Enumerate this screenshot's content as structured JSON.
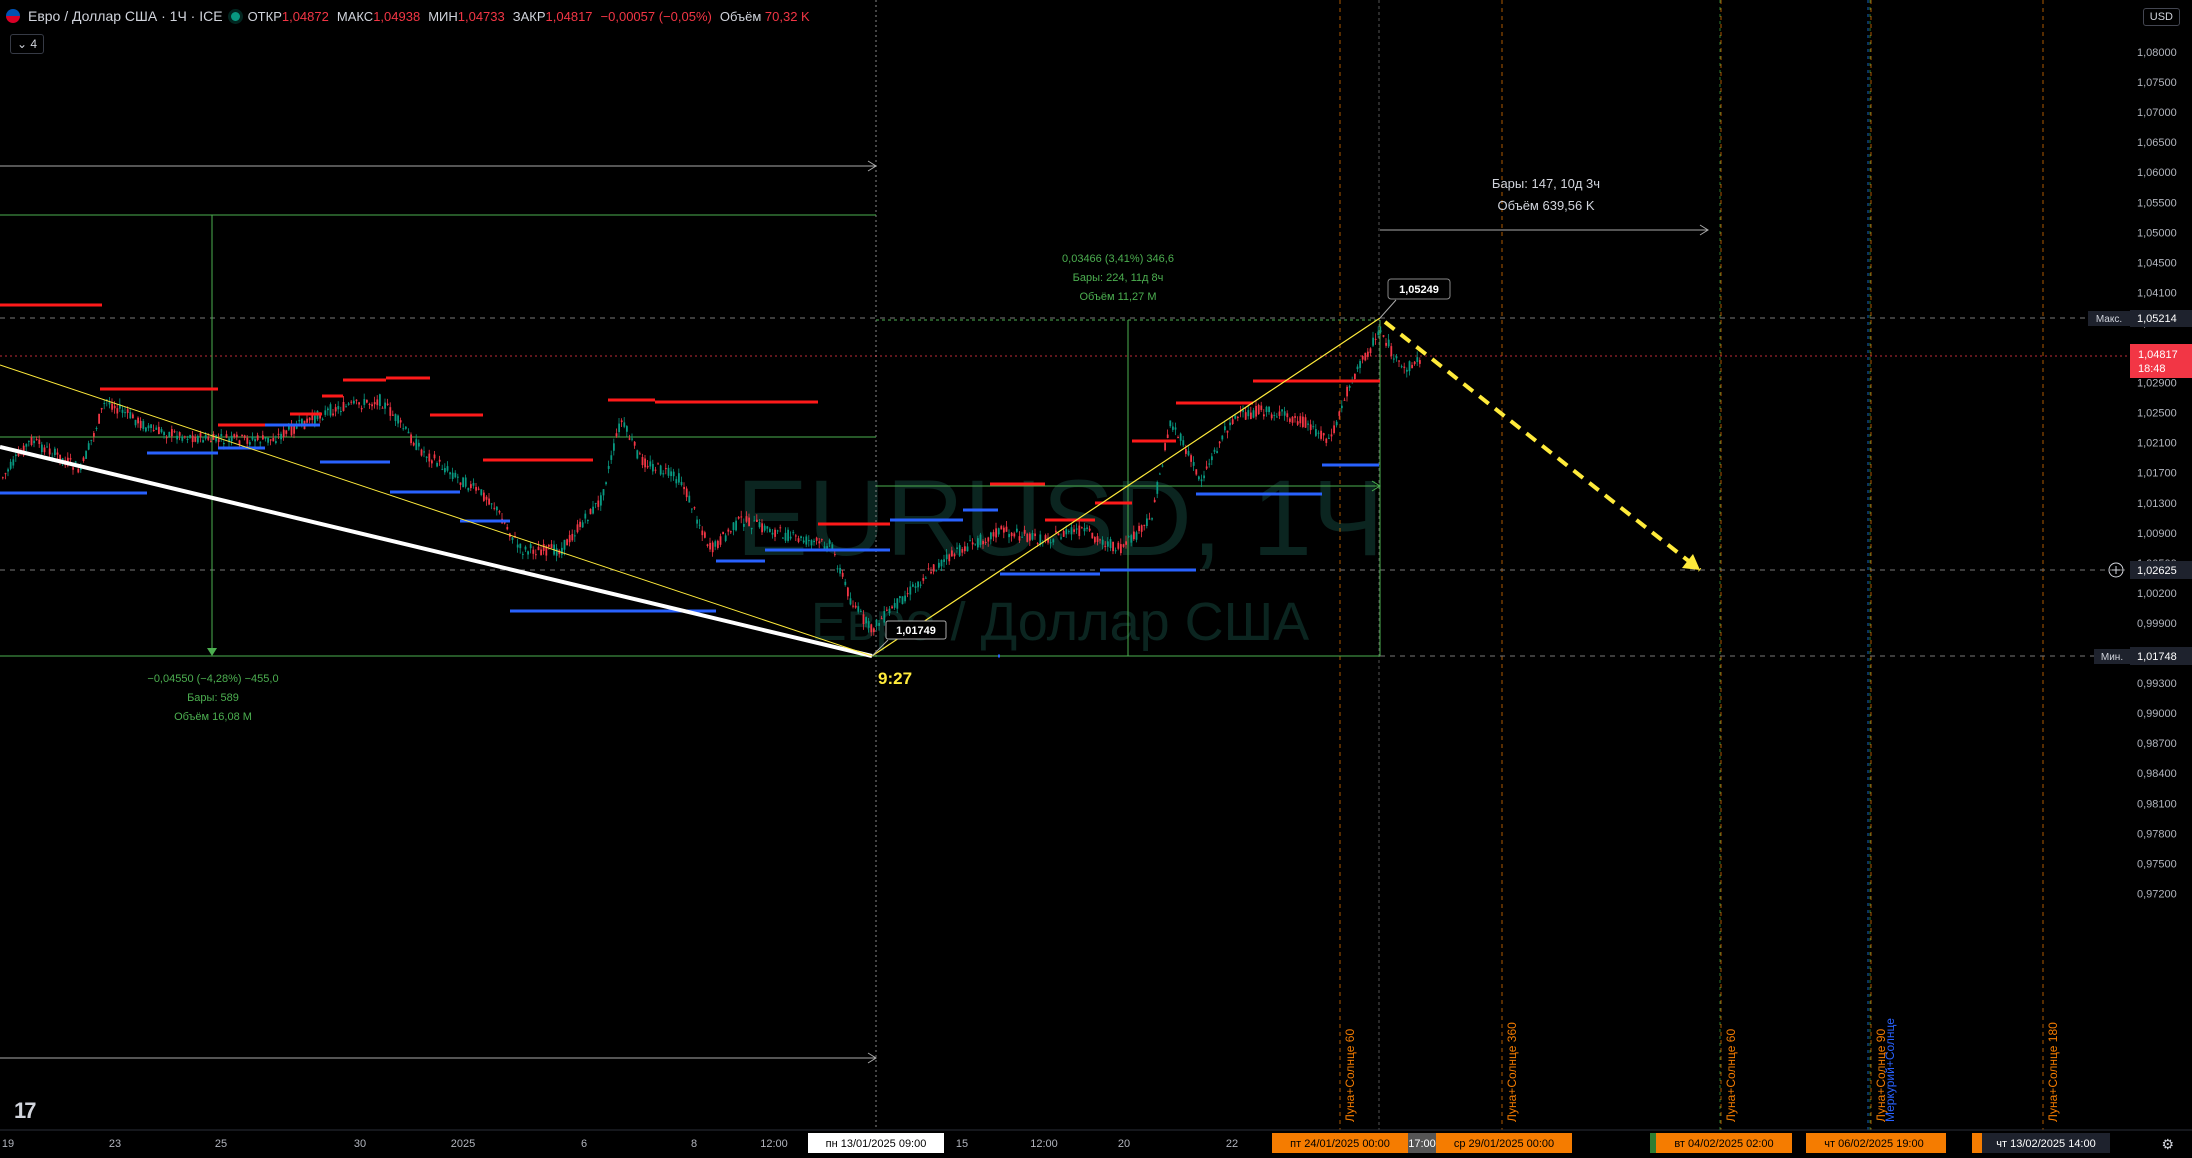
{
  "header": {
    "symbol": "Евро / Доллар США · 1Ч · ICE",
    "open_label": "ОТКР",
    "open": "1,04872",
    "high_label": "МАКС",
    "high": "1,04938",
    "low_label": "МИН",
    "low": "1,04733",
    "close_label": "ЗАКР",
    "close": "1,04817",
    "change": "−0,00057 (−0,05%)",
    "volume_label": "Объём",
    "volume": "70,32 K",
    "indicator_count": "4"
  },
  "currency_button": "USD",
  "watermark": {
    "line1": "EURUSD, 1Ч",
    "line2": "Евро / Доллар США"
  },
  "price_axis": {
    "ticks": [
      "1,08000",
      "1,07500",
      "1,07000",
      "1,06500",
      "1,06000",
      "1,05500",
      "1,05000",
      "1,04500",
      "1,04100",
      "1,03700",
      "1,03300",
      "1,02900",
      "1,02500",
      "1,02100",
      "1,01700",
      "1,01300",
      "1,00900",
      "1,00500",
      "1,00200",
      "0,99900",
      "0,99600",
      "0,99300",
      "0,99000",
      "0,98700",
      "0,98400",
      "0,98100",
      "0,97800",
      "0,97500",
      "0,97200"
    ],
    "max_label": "Макс.",
    "max_value": "1,05214",
    "current_value": "1,04817",
    "current_countdown": "18:48",
    "cross_value": "1,02625",
    "min_label": "Мин.",
    "min_value": "1,01748"
  },
  "time_axis": {
    "ticks": [
      "19",
      "23",
      "25",
      "30",
      "2025",
      "6",
      "8",
      "12:00",
      "15",
      "12:00",
      "20",
      "22"
    ],
    "crosshair_label": "пн 13/01/2025   09:00",
    "orange_labels": [
      "пт 24/01/2025   00:00",
      "ср 29/01/2025   00:00",
      "вт 04/02/2025   02:00",
      "чт 06/02/2025   19:00",
      "чт 13/02/2025   14:00"
    ],
    "grey_label": "17:00"
  },
  "annotations": {
    "left_range": [
      "−0,04550 (−4,28%) −455,0",
      "Бары: 589",
      "Объём 16,08 M"
    ],
    "right_range": [
      "0,03466 (3,41%) 346,6",
      "Бары: 224, 11д 8ч",
      "Объём 11,27 M"
    ],
    "top_range": [
      "Бары: 147, 10д 3ч",
      "Объём 639,56 K"
    ],
    "low_callout": "1,01749",
    "high_callout": "1,05249",
    "time_text": "9:27"
  },
  "vertical_labels": [
    "Луна+Солнце 60",
    "Луна+Солнце 360",
    "Луна+Солнце 60",
    "Луна+Солнце 90",
    "Меркурий+Солнце",
    "Луна+Солнце 180"
  ],
  "colors": {
    "bg": "#000000",
    "up": "#089981",
    "down": "#f23645",
    "resistance": "#ff1a1a",
    "support": "#2962ff",
    "trend": "#ffeb3b",
    "range": "#4caf50",
    "orange": "#f57c00"
  }
}
